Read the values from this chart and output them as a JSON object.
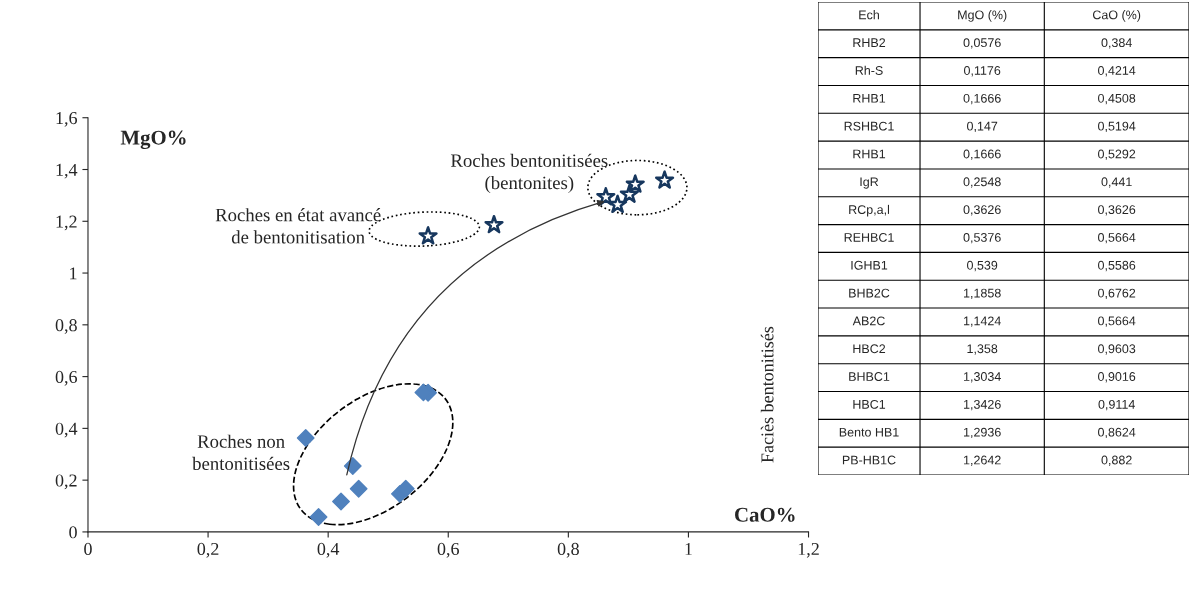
{
  "chart_data": [
    {
      "type": "scatter",
      "xlabel": "CaO%",
      "ylabel": "MgO%",
      "xlim": [
        0,
        1.2
      ],
      "ylim": [
        0,
        1.6
      ],
      "xticks": [
        0,
        {
          "value": 0.2,
          "label": "0,2"
        },
        {
          "value": 0.4,
          "label": "0,4"
        },
        {
          "value": 0.6,
          "label": "0,6"
        },
        {
          "value": 0.8,
          "label": "0,8"
        },
        1,
        {
          "value": 1.2,
          "label": "1,2"
        }
      ],
      "yticks": [
        0,
        {
          "value": 0.2,
          "label": "0,2"
        },
        {
          "value": 0.4,
          "label": "0,4"
        },
        {
          "value": 0.6,
          "label": "0,6"
        },
        {
          "value": 0.8,
          "label": "0,8"
        },
        1,
        {
          "value": 1.2,
          "label": "1,2"
        },
        {
          "value": 1.4,
          "label": "1,4"
        },
        {
          "value": 1.6,
          "label": "1,6"
        }
      ],
      "grid": false,
      "series": [
        {
          "color": "#4f81bd",
          "marker": "diamond",
          "x": [
            0.384,
            0.4214,
            0.4508,
            0.5194,
            0.5292,
            0.441,
            0.3626,
            0.5664,
            0.5586
          ],
          "values": [
            0.0576,
            0.1176,
            0.1666,
            0.147,
            0.1666,
            0.2548,
            0.3626,
            0.5376,
            0.539
          ]
        },
        {
          "color": "#17375e",
          "marker": "star",
          "x": [
            0.6762,
            0.5664,
            0.9603,
            0.9016,
            0.9114,
            0.8624,
            0.882
          ],
          "values": [
            1.1858,
            1.1424,
            1.358,
            1.3034,
            1.3426,
            1.2936,
            1.2642
          ]
        }
      ],
      "annotations": [
        "Roches bentonitisées\n(bentonites)",
        "Roches en état avancé\nde bentonitisation",
        "Roches non\nbentonitisées"
      ]
    },
    {
      "type": "other",
      "ylabel": "Faciès bentonitisés",
      "annotations": [
        "Ech",
        "MgO (%)",
        "CaO (%)",
        "RHB2",
        "0,0576",
        "0,384",
        "Rh-S",
        "0,1176",
        "0,4214",
        "RHB1",
        "0,1666",
        "0,4508",
        "RSHBC1",
        "0,147",
        "0,5194",
        "RHB1",
        "0,1666",
        "0,5292",
        "IgR",
        "0,2548",
        "0,441",
        "RCp,a,l",
        "0,3626",
        "0,3626",
        "REHBC1",
        "0,5376",
        "0,5664",
        "IGHB1",
        "0,539",
        "0,5586",
        "BHB2C",
        "1,1858",
        "0,6762",
        "AB2C",
        "1,1424",
        "0,5664",
        "HBC2",
        "1,358",
        "0,9603",
        "BHBC1",
        "1,3034",
        "0,9016",
        "HBC1",
        "1,3426",
        "0,9114",
        "Bento HB1",
        "1,2936",
        "0,8624",
        "PB-HB1C",
        "1,2642",
        "0,882"
      ]
    }
  ]
}
